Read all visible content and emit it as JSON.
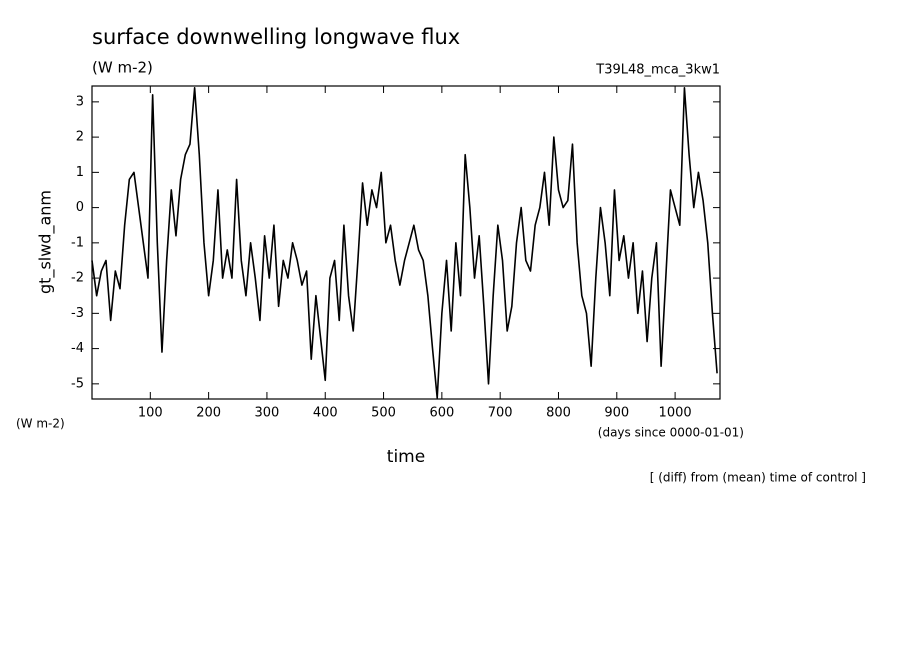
{
  "chart_data": {
    "type": "line",
    "title": "surface downwelling longwave flux",
    "units": "(W m-2)",
    "experiment": "T39L48_mca_3kw1",
    "y_label": "gt_slwd_anm",
    "y_units": "(W m-2)",
    "x_label": "time",
    "x_units": "(days since 0000-01-01)",
    "note": "[ (diff) from (mean) time of control ]",
    "xlim": [
      0,
      1077
    ],
    "ylim": [
      -5.43,
      3.45
    ],
    "xticks": [
      100,
      200,
      300,
      400,
      500,
      600,
      700,
      800,
      900,
      1000
    ],
    "yticks": [
      -5,
      -4,
      -3,
      -2,
      -1,
      0,
      1,
      2,
      3
    ],
    "color": "#000000",
    "x": [
      0,
      8,
      16,
      24,
      32,
      40,
      48,
      56,
      64,
      72,
      80,
      88,
      96,
      104,
      112,
      120,
      128,
      136,
      144,
      152,
      160,
      168,
      176,
      184,
      192,
      200,
      208,
      216,
      224,
      232,
      240,
      248,
      256,
      264,
      272,
      280,
      288,
      296,
      304,
      312,
      320,
      328,
      336,
      344,
      352,
      360,
      368,
      376,
      384,
      392,
      400,
      408,
      416,
      424,
      432,
      440,
      448,
      456,
      464,
      472,
      480,
      488,
      496,
      504,
      512,
      520,
      528,
      536,
      544,
      552,
      560,
      568,
      576,
      584,
      592,
      600,
      608,
      616,
      624,
      632,
      640,
      648,
      656,
      664,
      672,
      680,
      688,
      696,
      704,
      712,
      720,
      728,
      736,
      744,
      752,
      760,
      768,
      776,
      784,
      792,
      800,
      808,
      816,
      824,
      832,
      840,
      848,
      856,
      864,
      872,
      880,
      888,
      896,
      904,
      912,
      920,
      928,
      936,
      944,
      952,
      960,
      968,
      976,
      984,
      992,
      1000,
      1008,
      1016,
      1024,
      1032,
      1040,
      1048,
      1056,
      1064,
      1072
    ],
    "values": [
      -1.5,
      -2.5,
      -1.8,
      -1.5,
      -3.2,
      -1.8,
      -2.3,
      -0.5,
      0.8,
      1.0,
      0.0,
      -1.0,
      -2.0,
      3.2,
      -1.0,
      -4.1,
      -1.5,
      0.5,
      -0.8,
      0.8,
      1.5,
      1.8,
      3.4,
      1.5,
      -1.0,
      -2.5,
      -1.5,
      0.5,
      -2.0,
      -1.2,
      -2.0,
      0.8,
      -1.5,
      -2.5,
      -1.0,
      -2.0,
      -3.2,
      -0.8,
      -2.0,
      -0.5,
      -2.8,
      -1.5,
      -2.0,
      -1.0,
      -1.5,
      -2.2,
      -1.8,
      -4.3,
      -2.5,
      -3.7,
      -4.9,
      -2.0,
      -1.5,
      -3.2,
      -0.5,
      -2.5,
      -3.5,
      -1.5,
      0.7,
      -0.5,
      0.5,
      0.0,
      1.0,
      -1.0,
      -0.5,
      -1.5,
      -2.2,
      -1.5,
      -1.0,
      -0.5,
      -1.2,
      -1.5,
      -2.5,
      -4.0,
      -5.4,
      -3.0,
      -1.5,
      -3.5,
      -1.0,
      -2.5,
      1.5,
      0.0,
      -2.0,
      -0.8,
      -2.8,
      -5.0,
      -2.5,
      -0.5,
      -1.5,
      -3.5,
      -2.8,
      -1.0,
      0.0,
      -1.5,
      -1.8,
      -0.5,
      0.0,
      1.0,
      -0.5,
      2.0,
      0.5,
      0.0,
      0.2,
      1.8,
      -1.0,
      -2.5,
      -3.0,
      -4.5,
      -2.0,
      0.0,
      -1.0,
      -2.5,
      0.5,
      -1.5,
      -0.8,
      -2.0,
      -1.0,
      -3.0,
      -1.8,
      -3.8,
      -2.0,
      -1.0,
      -4.5,
      -2.0,
      0.5,
      0.0,
      -0.5,
      3.4,
      1.5,
      0.0,
      1.0,
      0.2,
      -1.0,
      -3.0,
      -4.7
    ]
  }
}
